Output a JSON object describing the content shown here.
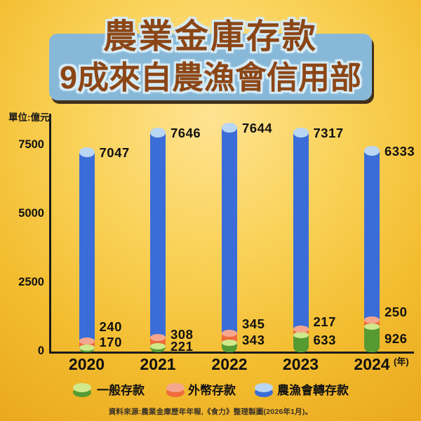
{
  "title": {
    "line1": "農業金庫存款",
    "line2": "9成來自農漁會信用部"
  },
  "unit_label": "單位:億元",
  "x_axis_suffix": "(年)",
  "source": "資料來源:農業金庫歷年年報,《食力》整理製圖(2026年1月)。",
  "colors": {
    "background_gold": "#F2B52B",
    "background_light": "#FFE084",
    "title_text": "#8C4616",
    "title_panel": "#87B8D8",
    "title_outline": "#D6EBF5",
    "axis": "#1C1C1C",
    "label_text": "#111111",
    "general_deposit": "#569A33",
    "general_cap": "#CFE98B",
    "foreign_deposit": "#EF6C3B",
    "foreign_cap": "#F5A78D",
    "redeposit": "#3B6DD8",
    "redeposit_cap": "#B9D6F2"
  },
  "chart_data": {
    "type": "bar",
    "stacked": true,
    "title": "農業金庫存款 9成來自農漁會信用部",
    "unit": "億元",
    "categories": [
      "2020",
      "2021",
      "2022",
      "2023",
      "2024"
    ],
    "series": [
      {
        "name": "一般存款",
        "key": "general",
        "values": [
          170,
          221,
          343,
          633,
          926
        ]
      },
      {
        "name": "外幣存款",
        "key": "foreign",
        "values": [
          240,
          308,
          345,
          217,
          250
        ]
      },
      {
        "name": "農漁會轉存款",
        "key": "redeposit",
        "values": [
          7047,
          7646,
          7644,
          7317,
          6333
        ]
      }
    ],
    "totals": [
      7457,
      8175,
      8332,
      8167,
      7509
    ],
    "y_ticks": [
      0,
      2500,
      5000,
      7500
    ],
    "ylim": [
      0,
      8700
    ],
    "grid": false,
    "legend_position": "bottom"
  }
}
